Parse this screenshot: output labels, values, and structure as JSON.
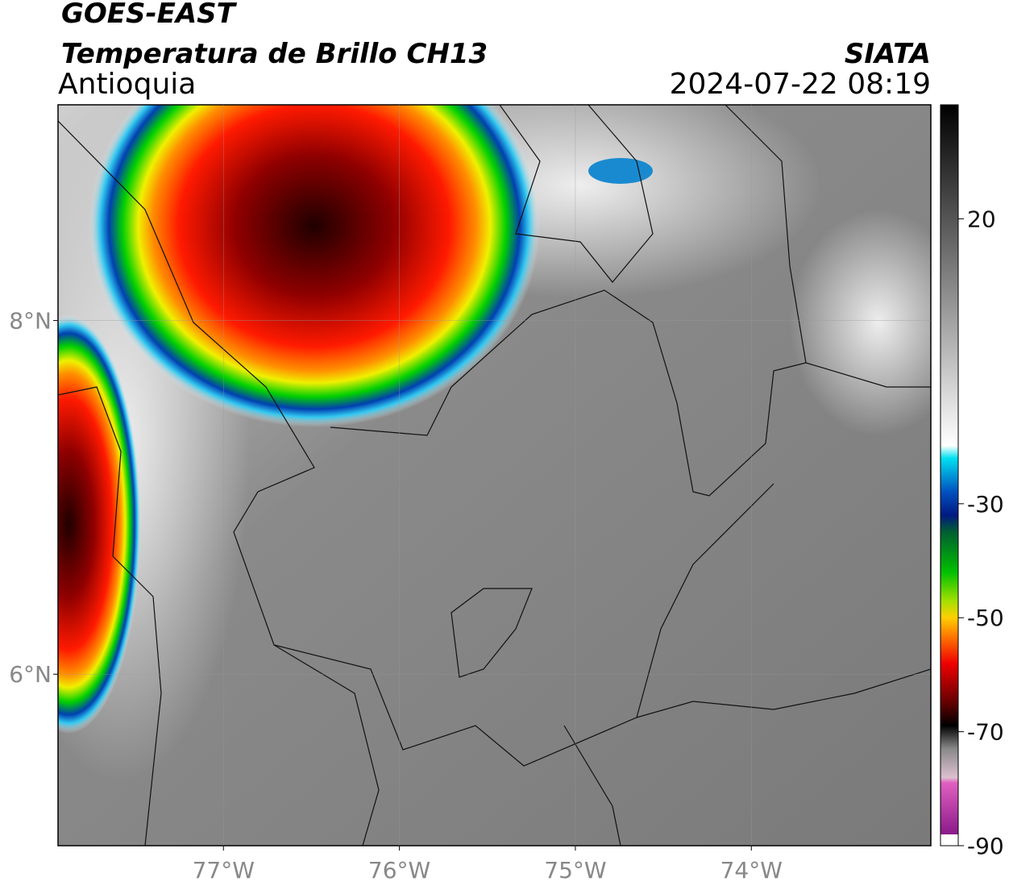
{
  "header": {
    "title": "GOES-EAST",
    "subtitle": "Temperatura de Brillo CH13",
    "region": "Antioquia",
    "source": "SIATA",
    "datetime": "2024-07-22 08:19"
  },
  "map": {
    "xlim": [
      -77.94,
      -72.98
    ],
    "ylim": [
      5.03,
      9.22
    ],
    "xticks": [
      {
        "value": -77,
        "label": "77°W"
      },
      {
        "value": -76,
        "label": "76°W"
      },
      {
        "value": -75,
        "label": "75°W"
      },
      {
        "value": -74,
        "label": "74°W"
      }
    ],
    "yticks": [
      {
        "value": 6,
        "label": "6°N"
      },
      {
        "value": 8,
        "label": "8°N"
      }
    ]
  },
  "colorbar": {
    "lim": [
      -90,
      40
    ],
    "ticks": [
      20,
      -30,
      -50,
      -70,
      -90
    ]
  }
}
